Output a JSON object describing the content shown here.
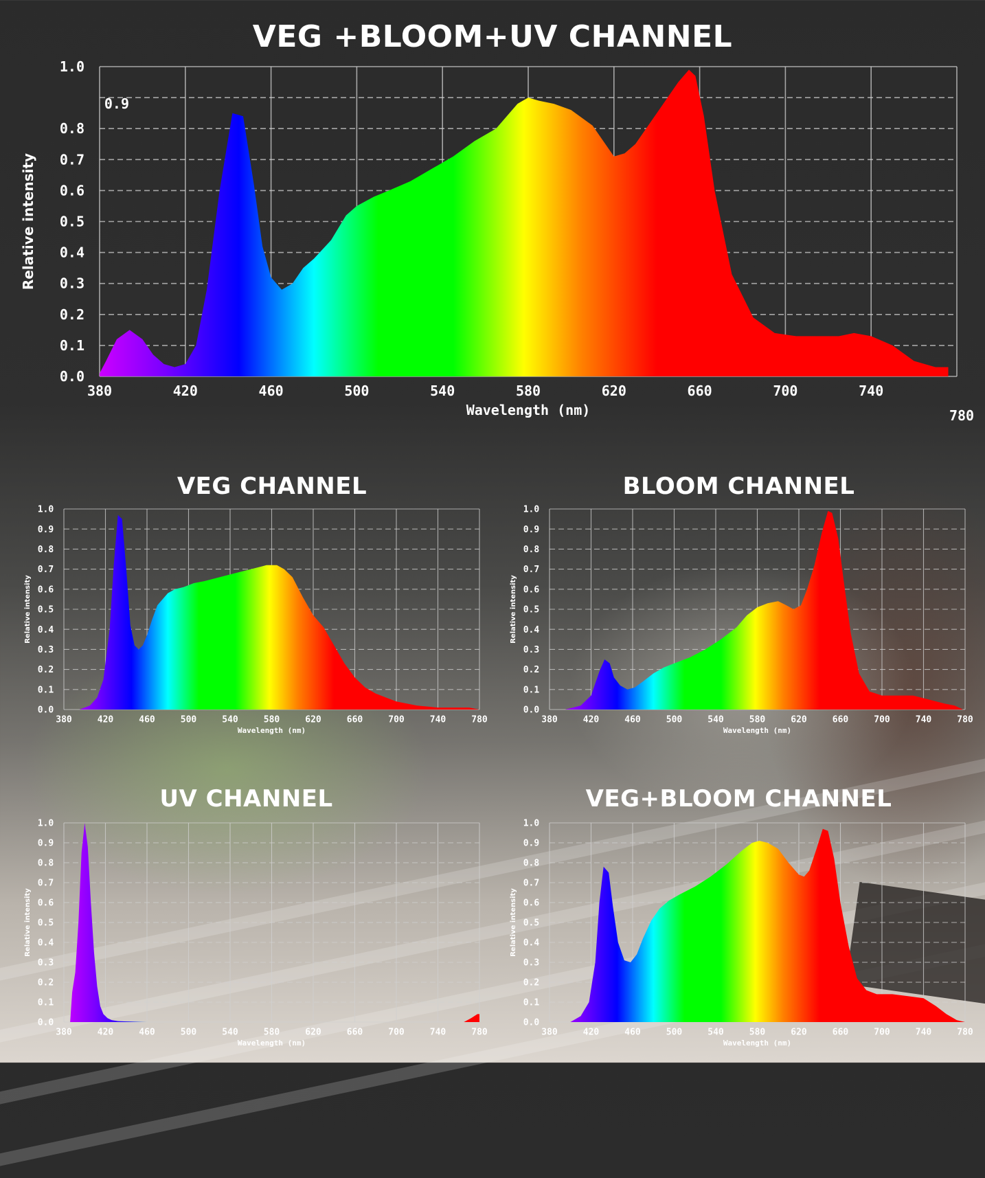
{
  "colors": {
    "grid": "#d0d0d0",
    "text": "#ffffff",
    "uv": "#cc00ff",
    "violet": "#7a00ff",
    "blue": "#0000ff",
    "cyan": "#00ffff",
    "green": "#00ff00",
    "yellow": "#ffff00",
    "orange": "#ff8000",
    "red": "#ff0000"
  },
  "chart_data": [
    {
      "id": "combined",
      "type": "area",
      "title": "VEG +BLOOM+UV CHANNEL",
      "xlabel": "Wavelength (nm)",
      "ylabel": "Relative intensity",
      "xlim": [
        380,
        780
      ],
      "ylim": [
        0,
        1.0
      ],
      "xticks": [
        "380",
        "420",
        "460",
        "500",
        "540",
        "580",
        "620",
        "660",
        "700",
        "740"
      ],
      "xtick_extra": "780",
      "yticks": [
        "0.0",
        "0.1",
        "0.2",
        "0.3",
        "0.4",
        "0.5",
        "0.6",
        "0.7",
        "0.8",
        "0.9",
        "1.0"
      ],
      "grid": true,
      "x": [
        380,
        383,
        388,
        394,
        400,
        405,
        410,
        415,
        420,
        425,
        430,
        436,
        442,
        447,
        452,
        456,
        460,
        465,
        470,
        475,
        480,
        488,
        495,
        500,
        508,
        515,
        525,
        535,
        545,
        555,
        565,
        575,
        580,
        585,
        592,
        600,
        610,
        620,
        625,
        630,
        640,
        650,
        655,
        658,
        662,
        667,
        675,
        685,
        695,
        705,
        715,
        725,
        732,
        740,
        750,
        760,
        770,
        776
      ],
      "y": [
        0.01,
        0.05,
        0.12,
        0.15,
        0.12,
        0.07,
        0.04,
        0.03,
        0.04,
        0.1,
        0.28,
        0.6,
        0.85,
        0.84,
        0.62,
        0.42,
        0.32,
        0.28,
        0.3,
        0.35,
        0.38,
        0.44,
        0.52,
        0.55,
        0.58,
        0.6,
        0.63,
        0.67,
        0.71,
        0.76,
        0.8,
        0.88,
        0.9,
        0.89,
        0.88,
        0.86,
        0.81,
        0.71,
        0.72,
        0.75,
        0.85,
        0.95,
        0.99,
        0.97,
        0.84,
        0.6,
        0.33,
        0.19,
        0.14,
        0.13,
        0.13,
        0.13,
        0.14,
        0.13,
        0.1,
        0.05,
        0.03,
        0.03
      ]
    },
    {
      "id": "veg",
      "type": "area",
      "title": "VEG CHANNEL",
      "xlabel": "Wavelength (nm)",
      "ylabel": "Relative intensity",
      "xlim": [
        380,
        780
      ],
      "ylim": [
        0,
        1.0
      ],
      "xticks": [
        "380",
        "420",
        "460",
        "500",
        "540",
        "580",
        "620",
        "660",
        "700",
        "740",
        "780"
      ],
      "yticks": [
        "0.0",
        "0.1",
        "0.2",
        "0.3",
        "0.4",
        "0.5",
        "0.6",
        "0.7",
        "0.8",
        "0.9",
        "1.0"
      ],
      "grid": true,
      "x": [
        395,
        405,
        412,
        418,
        424,
        428,
        432,
        436,
        440,
        444,
        448,
        452,
        456,
        460,
        465,
        470,
        475,
        480,
        487,
        495,
        505,
        515,
        530,
        545,
        560,
        575,
        585,
        592,
        600,
        610,
        620,
        630,
        640,
        650,
        660,
        670,
        680,
        690,
        700,
        710,
        720,
        730,
        740,
        750,
        760,
        770,
        780
      ],
      "y": [
        0.0,
        0.02,
        0.06,
        0.15,
        0.4,
        0.72,
        0.97,
        0.95,
        0.7,
        0.42,
        0.32,
        0.3,
        0.32,
        0.37,
        0.45,
        0.52,
        0.55,
        0.58,
        0.6,
        0.61,
        0.63,
        0.64,
        0.66,
        0.68,
        0.7,
        0.72,
        0.72,
        0.7,
        0.66,
        0.56,
        0.47,
        0.41,
        0.32,
        0.23,
        0.16,
        0.11,
        0.08,
        0.06,
        0.04,
        0.03,
        0.02,
        0.015,
        0.01,
        0.01,
        0.01,
        0.01,
        0.0
      ]
    },
    {
      "id": "bloom",
      "type": "area",
      "title": "BLOOM CHANNEL",
      "xlabel": "Wavelength (nm)",
      "ylabel": "Relative intensity",
      "xlim": [
        380,
        780
      ],
      "ylim": [
        0,
        1.0
      ],
      "xticks": [
        "380",
        "420",
        "460",
        "500",
        "540",
        "580",
        "620",
        "660",
        "700",
        "740",
        "780"
      ],
      "yticks": [
        "0.0",
        "0.1",
        "0.2",
        "0.3",
        "0.4",
        "0.5",
        "0.6",
        "0.7",
        "0.8",
        "0.9",
        "1.0"
      ],
      "grid": true,
      "x": [
        395,
        410,
        420,
        428,
        433,
        438,
        442,
        448,
        455,
        462,
        470,
        480,
        490,
        500,
        515,
        530,
        545,
        560,
        570,
        580,
        590,
        600,
        608,
        615,
        622,
        628,
        635,
        642,
        648,
        652,
        658,
        663,
        670,
        678,
        688,
        700,
        715,
        730,
        745,
        760,
        770,
        778
      ],
      "y": [
        0.0,
        0.02,
        0.07,
        0.19,
        0.25,
        0.23,
        0.16,
        0.12,
        0.1,
        0.11,
        0.14,
        0.18,
        0.21,
        0.23,
        0.26,
        0.3,
        0.35,
        0.41,
        0.47,
        0.51,
        0.53,
        0.54,
        0.52,
        0.5,
        0.52,
        0.6,
        0.72,
        0.88,
        0.99,
        0.98,
        0.85,
        0.65,
        0.38,
        0.18,
        0.09,
        0.07,
        0.07,
        0.07,
        0.05,
        0.03,
        0.02,
        0.0
      ]
    },
    {
      "id": "uv",
      "type": "area",
      "title": "UV CHANNEL",
      "xlabel": "Wavelength (nm)",
      "ylabel": "Relative intensity",
      "xlim": [
        380,
        780
      ],
      "ylim": [
        0,
        1.0
      ],
      "xticks": [
        "380",
        "420",
        "460",
        "500",
        "540",
        "580",
        "620",
        "660",
        "700",
        "740",
        "780"
      ],
      "yticks": [
        "0.0",
        "0.1",
        "0.2",
        "0.3",
        "0.4",
        "0.5",
        "0.6",
        "0.7",
        "0.8",
        "0.9",
        "1.0"
      ],
      "grid": true,
      "x": [
        386,
        388,
        391,
        394,
        397,
        400,
        403,
        406,
        409,
        412,
        415,
        418,
        422,
        426,
        432,
        440,
        460,
        500,
        550,
        600,
        650,
        700,
        765,
        772,
        778,
        780
      ],
      "y": [
        0.0,
        0.15,
        0.25,
        0.5,
        0.85,
        1.0,
        0.88,
        0.6,
        0.35,
        0.18,
        0.08,
        0.04,
        0.02,
        0.01,
        0.005,
        0.003,
        0.0,
        0.0,
        0.0,
        0.0,
        0.0,
        0.0,
        0.0,
        0.02,
        0.04,
        0.04
      ]
    },
    {
      "id": "vegbloom",
      "type": "area",
      "title": "VEG+BLOOM CHANNEL",
      "xlabel": "Wavelength (nm)",
      "ylabel": "Relative intensity",
      "xlim": [
        380,
        780
      ],
      "ylim": [
        0,
        1.0
      ],
      "xticks": [
        "380",
        "420",
        "460",
        "500",
        "540",
        "580",
        "620",
        "660",
        "700",
        "740",
        "780"
      ],
      "yticks": [
        "0.0",
        "0.1",
        "0.2",
        "0.3",
        "0.4",
        "0.5",
        "0.6",
        "0.7",
        "0.8",
        "0.9",
        "1.0"
      ],
      "grid": true,
      "x": [
        400,
        410,
        418,
        424,
        428,
        432,
        437,
        441,
        446,
        452,
        458,
        464,
        470,
        478,
        486,
        495,
        505,
        520,
        535,
        550,
        565,
        575,
        582,
        590,
        600,
        610,
        620,
        625,
        630,
        637,
        643,
        648,
        654,
        660,
        668,
        676,
        685,
        695,
        710,
        725,
        740,
        752,
        762,
        772,
        780
      ],
      "y": [
        0.0,
        0.03,
        0.1,
        0.3,
        0.6,
        0.78,
        0.75,
        0.58,
        0.4,
        0.31,
        0.3,
        0.34,
        0.42,
        0.51,
        0.57,
        0.61,
        0.64,
        0.68,
        0.73,
        0.79,
        0.86,
        0.9,
        0.91,
        0.9,
        0.87,
        0.8,
        0.74,
        0.73,
        0.76,
        0.87,
        0.97,
        0.96,
        0.82,
        0.6,
        0.38,
        0.22,
        0.16,
        0.14,
        0.14,
        0.13,
        0.12,
        0.08,
        0.04,
        0.01,
        0.0
      ]
    }
  ]
}
